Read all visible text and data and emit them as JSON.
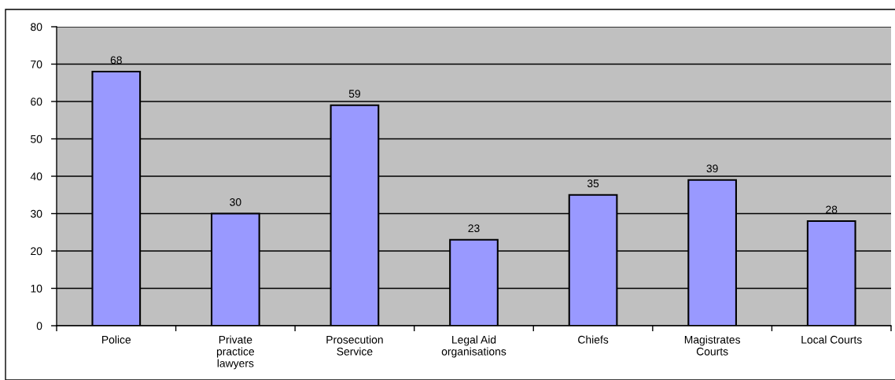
{
  "chart_data": {
    "type": "bar",
    "categories": [
      "Police",
      "Private practice lawyers",
      "Prosecution Service",
      "Legal Aid organisations",
      "Chiefs",
      "Magistrates Courts",
      "Local Courts"
    ],
    "values": [
      68,
      30,
      59,
      23,
      35,
      39,
      28
    ],
    "color": "#9999ff",
    "ylim": [
      0,
      80
    ],
    "yticks": [
      0,
      10,
      20,
      30,
      40,
      50,
      60,
      70,
      80
    ],
    "grid": "y",
    "data_labels": true
  }
}
